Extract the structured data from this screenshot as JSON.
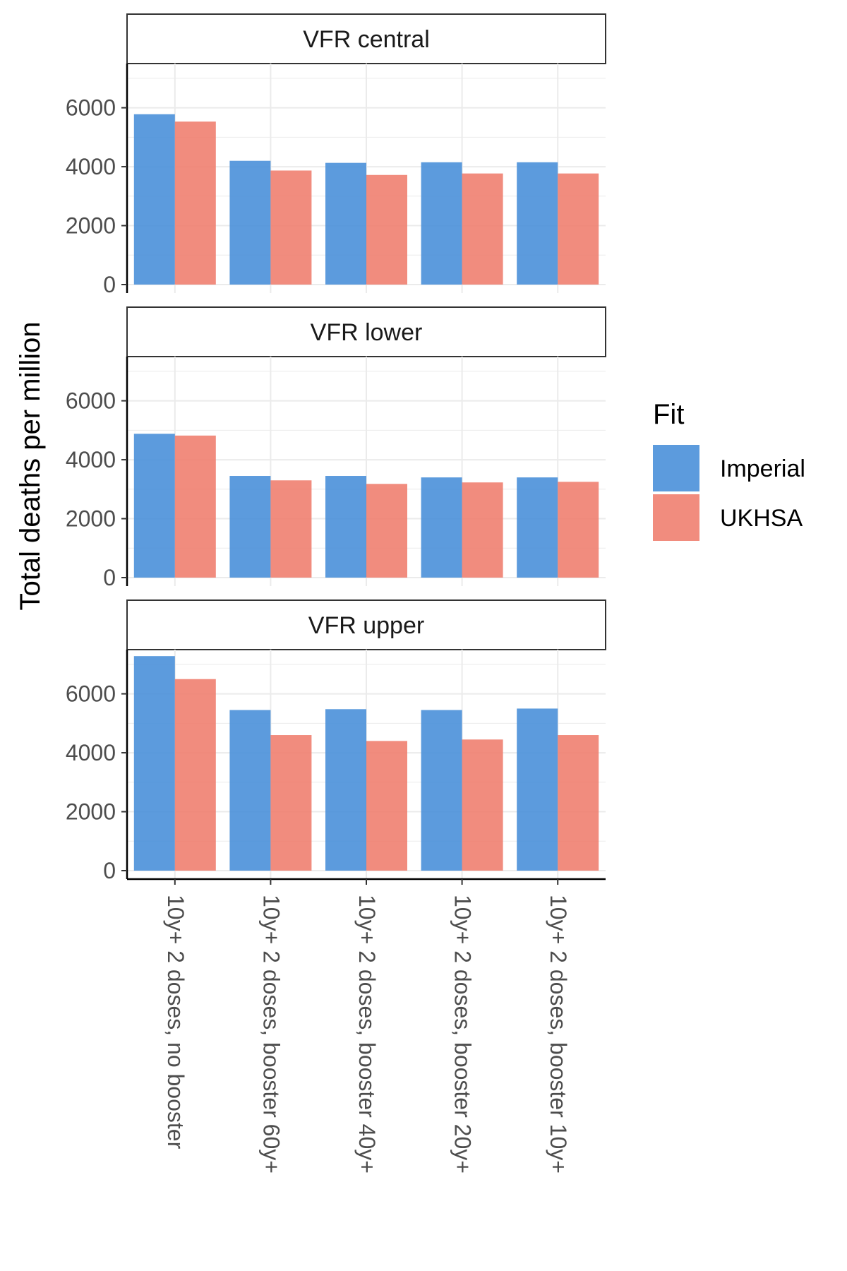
{
  "chart_data": {
    "type": "bar",
    "ylabel": "Total deaths per million",
    "xlabel": "",
    "ylim": [
      0,
      7500
    ],
    "yticks": [
      0,
      2000,
      4000,
      6000
    ],
    "categories": [
      "10y+ 2 doses, no booster",
      "10y+ 2 doses, booster 60y+",
      "10y+ 2 doses, booster 40y+",
      "10y+ 2 doses, booster 20y+",
      "10y+ 2 doses, booster 10y+"
    ],
    "legend": {
      "title": "Fit",
      "placement": "right",
      "items": [
        {
          "name": "Imperial",
          "color": "#4a90d9"
        },
        {
          "name": "UKHSA",
          "color": "#f08070"
        }
      ]
    },
    "grid": true,
    "panels": [
      {
        "title": "VFR central",
        "series": [
          {
            "name": "Imperial",
            "values": [
              5780,
              4200,
              4130,
              4150,
              4150
            ]
          },
          {
            "name": "UKHSA",
            "values": [
              5530,
              3870,
              3720,
              3770,
              3770
            ]
          }
        ]
      },
      {
        "title": "VFR lower",
        "series": [
          {
            "name": "Imperial",
            "values": [
              4880,
              3450,
              3450,
              3400,
              3400
            ]
          },
          {
            "name": "UKHSA",
            "values": [
              4820,
              3300,
              3180,
              3230,
              3250
            ]
          }
        ]
      },
      {
        "title": "VFR upper",
        "series": [
          {
            "name": "Imperial",
            "values": [
              7280,
              5450,
              5480,
              5450,
              5500
            ]
          },
          {
            "name": "UKHSA",
            "values": [
              6500,
              4600,
              4400,
              4450,
              4600
            ]
          }
        ]
      }
    ]
  }
}
